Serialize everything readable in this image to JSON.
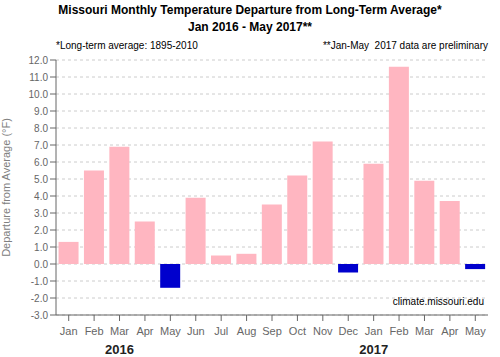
{
  "chart_data": {
    "type": "bar",
    "title": "Missouri Monthly Temperature Departure from Long-Term Average*",
    "subtitle": "Jan 2016 - May 2017**",
    "y_label": "Departure from Average (°F)",
    "categories": [
      "Jan",
      "Feb",
      "Mar",
      "Apr",
      "May",
      "Jun",
      "Jul",
      "Aug",
      "Sep",
      "Oct",
      "Nov",
      "Dec",
      "Jan",
      "Feb",
      "Mar",
      "Apr",
      "May"
    ],
    "values": [
      1.3,
      5.5,
      6.9,
      2.5,
      -1.4,
      3.9,
      0.5,
      0.6,
      3.5,
      5.2,
      7.2,
      -0.5,
      5.9,
      11.6,
      4.9,
      3.7,
      -0.3
    ],
    "colors": [
      "#FFB6C1",
      "#FFB6C1",
      "#FFB6C1",
      "#FFB6C1",
      "#0000CD",
      "#FFB6C1",
      "#FFB6C1",
      "#FFB6C1",
      "#FFB6C1",
      "#FFB6C1",
      "#FFB6C1",
      "#0000CD",
      "#FFB6C1",
      "#FFB6C1",
      "#FFB6C1",
      "#FFB6C1",
      "#0000CD"
    ],
    "ylim": [
      -3.0,
      12.0
    ],
    "yticks": [
      {
        "value": -3.0,
        "label": "-3.0"
      },
      {
        "value": -2.0,
        "label": "-2.0"
      },
      {
        "value": -1.0,
        "label": "-1.0"
      },
      {
        "value": 0.0,
        "label": "0.0"
      },
      {
        "value": 1.0,
        "label": "1.0"
      },
      {
        "value": 2.0,
        "label": "2.0"
      },
      {
        "value": 3.0,
        "label": "3.0"
      },
      {
        "value": 4.0,
        "label": "4.0"
      },
      {
        "value": 5.0,
        "label": "5.0"
      },
      {
        "value": 6.0,
        "label": "6.0"
      },
      {
        "value": 7.0,
        "label": "7.0"
      },
      {
        "value": 8.0,
        "label": "8.0"
      },
      {
        "value": 9.0,
        "label": "9.0"
      },
      {
        "value": 10.0,
        "label": "10.0"
      },
      {
        "value": 11.0,
        "label": "11.0"
      },
      {
        "value": 12.0,
        "label": "12.0"
      }
    ],
    "grid": true,
    "annotations": [
      {
        "text": "*Long-term average: 1895-2010"
      },
      {
        "text": "**Jan-May  2017 data are preliminary"
      },
      {
        "text": "climate.missouri.edu"
      },
      {
        "text": "2016",
        "x": 2
      },
      {
        "text": "2017",
        "x": 12
      }
    ]
  }
}
